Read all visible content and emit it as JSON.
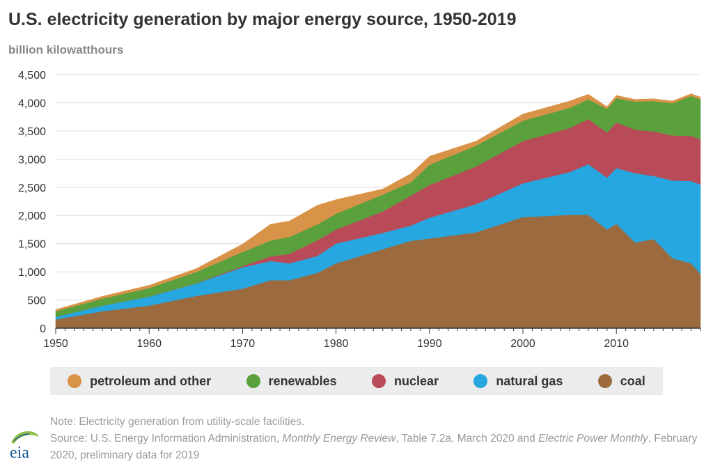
{
  "header": {
    "title": "U.S. electricity generation by major energy source, 1950-2019",
    "unit_label": "billion kilowatthours"
  },
  "legend": {
    "items": [
      {
        "label": "petroleum and other",
        "color": "#d99348"
      },
      {
        "label": "renewables",
        "color": "#5aa13e"
      },
      {
        "label": "nuclear",
        "color": "#b94a58"
      },
      {
        "label": "natural gas",
        "color": "#26a7df"
      },
      {
        "label": "coal",
        "color": "#9b6a3e"
      }
    ]
  },
  "footer": {
    "note": "Note: Electricity generation from utility-scale facilities.",
    "source_prefix": "Source: U.S. Energy Information Administration, ",
    "source_pub1": "Monthly Energy Review",
    "source_mid": ", Table 7.2a, March 2020 and ",
    "source_pub2": "Electric Power Monthly",
    "source_suffix": ", February 2020, preliminary data for 2019",
    "logo_text": "eia"
  },
  "chart_data": {
    "type": "area",
    "stacked": true,
    "x_ticks": [
      "1950",
      "1960",
      "1970",
      "1980",
      "1990",
      "2000",
      "2010"
    ],
    "y_ticks": [
      "0",
      "500",
      "1,000",
      "1,500",
      "2,000",
      "2,500",
      "3,000",
      "3,500",
      "4,000",
      "4,500"
    ],
    "xlim": [
      1950,
      2019
    ],
    "ylim": [
      0,
      4500
    ],
    "grid": "horizontal",
    "legend_position": "bottom",
    "x": [
      1950,
      1955,
      1960,
      1965,
      1970,
      1973,
      1975,
      1978,
      1980,
      1985,
      1988,
      1990,
      1995,
      2000,
      2005,
      2007,
      2009,
      2010,
      2012,
      2014,
      2016,
      2018,
      2019
    ],
    "series": [
      {
        "name": "coal",
        "color": "#9b6a3e",
        "values": [
          155,
          300,
          400,
          570,
          700,
          850,
          850,
          980,
          1150,
          1400,
          1550,
          1590,
          1700,
          1970,
          2010,
          2010,
          1750,
          1850,
          1520,
          1580,
          1240,
          1150,
          960
        ]
      },
      {
        "name": "natural gas",
        "color": "#26a7df",
        "values": [
          45,
          100,
          160,
          220,
          380,
          340,
          300,
          300,
          350,
          290,
          270,
          370,
          500,
          600,
          760,
          900,
          920,
          990,
          1230,
          1120,
          1380,
          1460,
          1590
        ]
      },
      {
        "name": "nuclear",
        "color": "#b94a58",
        "values": [
          0,
          0,
          1,
          4,
          22,
          85,
          170,
          280,
          250,
          380,
          530,
          580,
          670,
          750,
          780,
          800,
          800,
          810,
          770,
          790,
          800,
          800,
          800
        ]
      },
      {
        "name": "renewables",
        "color": "#5aa13e",
        "values": [
          100,
          125,
          150,
          200,
          250,
          280,
          300,
          280,
          280,
          300,
          240,
          360,
          370,
          360,
          360,
          350,
          420,
          430,
          500,
          540,
          570,
          710,
          710
        ]
      },
      {
        "name": "petroleum and other",
        "color": "#d99348",
        "values": [
          30,
          40,
          50,
          60,
          140,
          290,
          280,
          340,
          250,
          100,
          150,
          150,
          80,
          120,
          120,
          90,
          40,
          50,
          40,
          40,
          40,
          40,
          40
        ]
      }
    ]
  }
}
